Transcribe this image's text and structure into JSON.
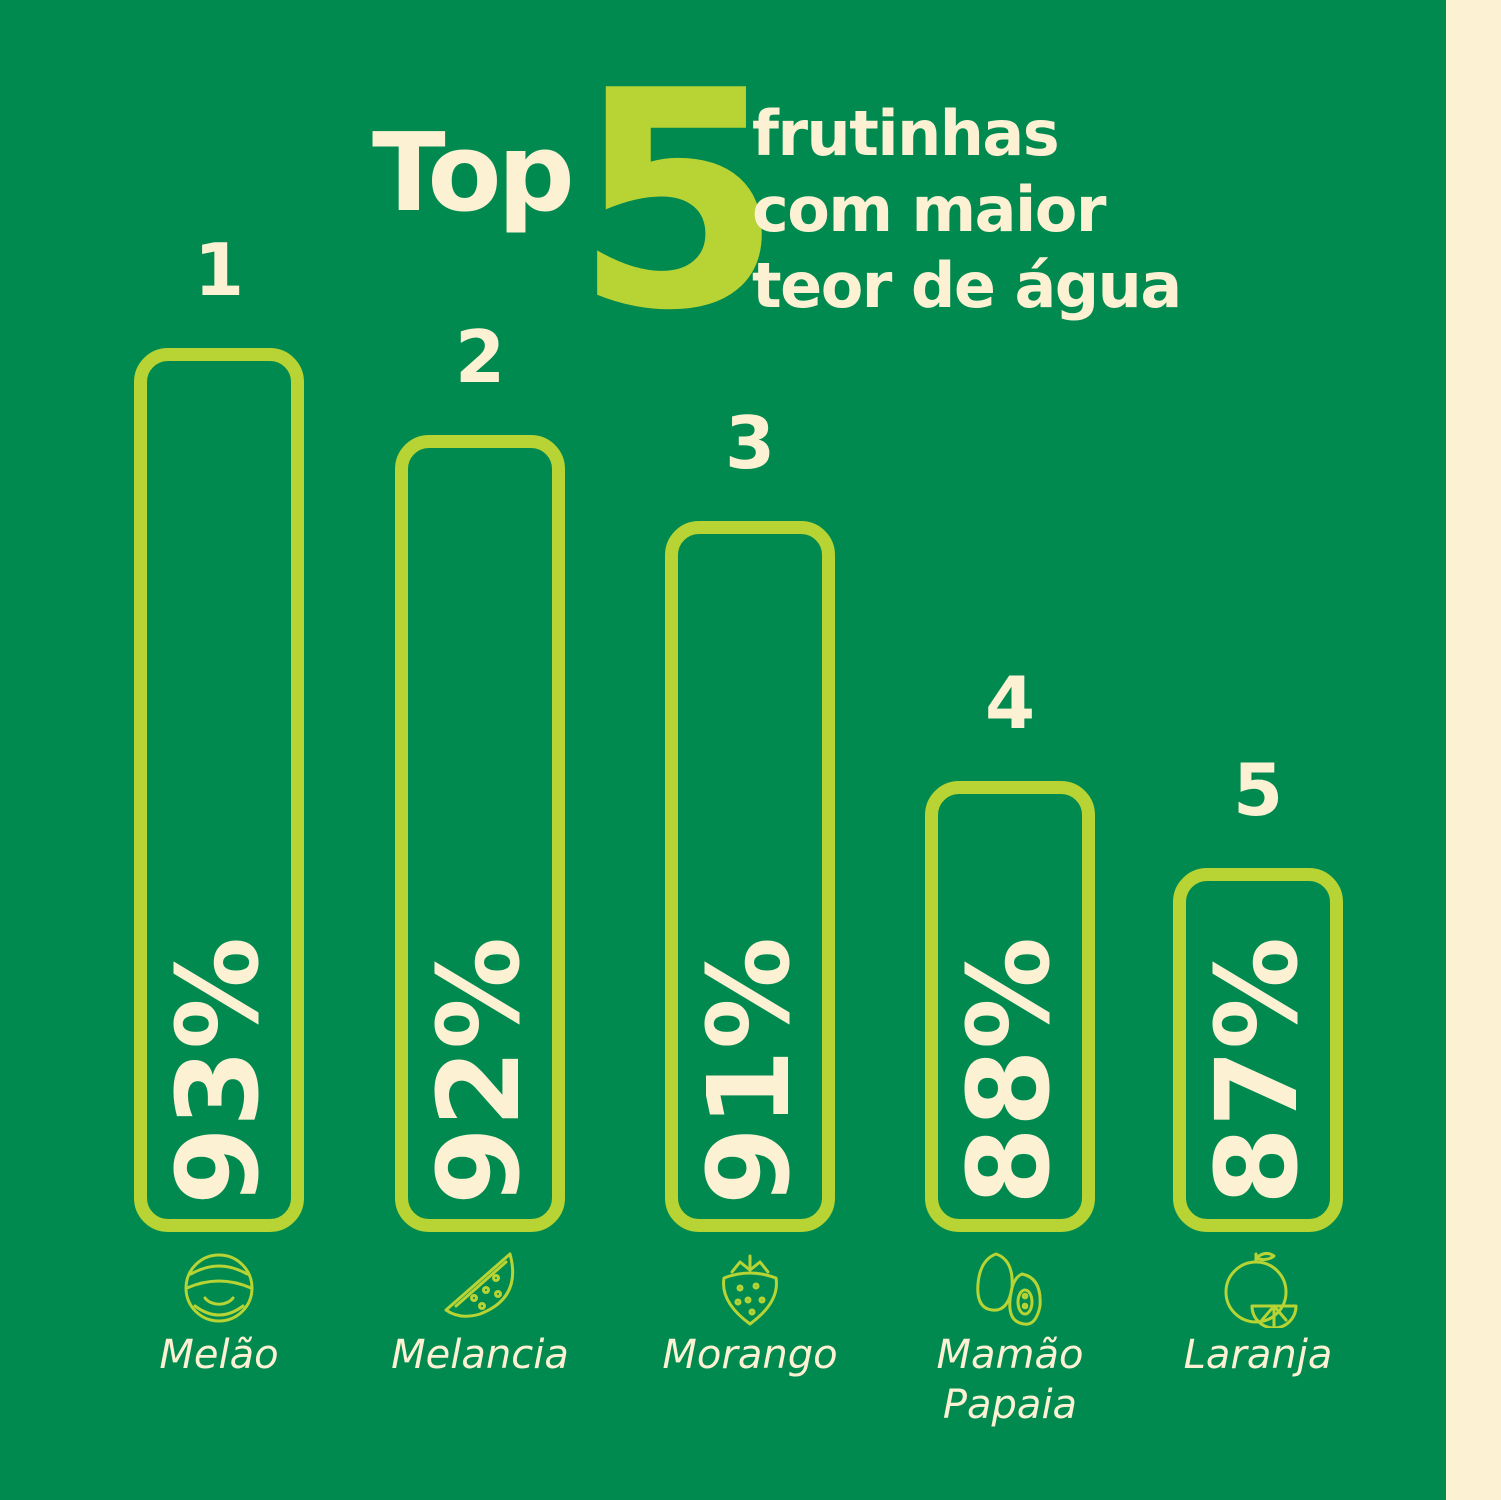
{
  "title": {
    "prefix": "Top",
    "number": "5",
    "line1": "frutinhas",
    "line2": "com maior",
    "line3": "teor de água"
  },
  "colors": {
    "background": "#008a50",
    "accent": "#b7d334",
    "cream": "#fdf1d3"
  },
  "chart_data": {
    "type": "bar",
    "categories": [
      "Melão",
      "Melancia",
      "Morango",
      "Mamão Papaia",
      "Laranja"
    ],
    "ranks": [
      "1",
      "2",
      "3",
      "4",
      "5"
    ],
    "values": [
      93,
      92,
      91,
      88,
      87
    ],
    "value_labels": [
      "93%",
      "92%",
      "91%",
      "88%",
      "87%"
    ],
    "label_lines": [
      [
        "Melão"
      ],
      [
        "Melancia"
      ],
      [
        "Morango"
      ],
      [
        "Mamão",
        "Papaia"
      ],
      [
        "Laranja"
      ]
    ],
    "icons": [
      "melon-icon",
      "watermelon-icon",
      "strawberry-icon",
      "papaya-icon",
      "orange-icon"
    ],
    "unit": "%"
  }
}
